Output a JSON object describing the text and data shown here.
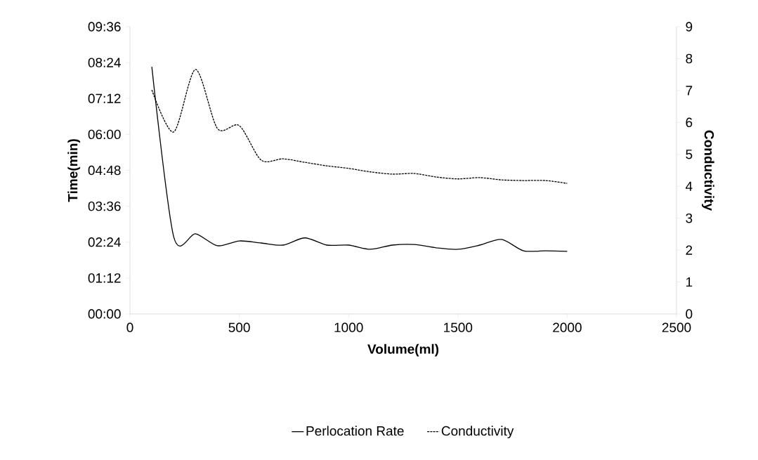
{
  "chart_data": {
    "type": "line",
    "xlabel": "Volume(ml)",
    "ylabel": "Time(min)",
    "y2label": "Conductivity",
    "legend": "bottom",
    "x": [
      100,
      200,
      300,
      400,
      500,
      600,
      700,
      800,
      900,
      1000,
      1100,
      1200,
      1300,
      1400,
      1500,
      1600,
      1700,
      1800,
      1900,
      2000
    ],
    "xlim": [
      0,
      2500
    ],
    "xticks": [
      0,
      500,
      1000,
      1500,
      2000,
      2500
    ],
    "ylim": [
      0,
      9.6
    ],
    "yticks": [
      {
        "value": 0,
        "label": "00:00"
      },
      {
        "value": 1.2,
        "label": "01:12"
      },
      {
        "value": 2.4,
        "label": "02:24"
      },
      {
        "value": 3.6,
        "label": "03:36"
      },
      {
        "value": 4.8,
        "label": "04:48"
      },
      {
        "value": 6.0,
        "label": "06:00"
      },
      {
        "value": 7.2,
        "label": "07:12"
      },
      {
        "value": 8.4,
        "label": "08:24"
      },
      {
        "value": 9.6,
        "label": "09:36"
      }
    ],
    "y2lim": [
      0,
      9
    ],
    "y2ticks": [
      0,
      1,
      2,
      3,
      4,
      5,
      6,
      7,
      8,
      9
    ],
    "series": [
      {
        "name": "Perlocation Rate",
        "color": "#000000",
        "line_style": "solid",
        "values": [
          8.26,
          2.58,
          2.68,
          2.28,
          2.44,
          2.37,
          2.3,
          2.54,
          2.3,
          2.3,
          2.16,
          2.3,
          2.32,
          2.21,
          2.16,
          2.3,
          2.49,
          2.11,
          2.11,
          2.09
        ]
      },
      {
        "name": "Conductivity",
        "color": "#000000",
        "line_style": "dashed",
        "axis": "y2",
        "values": [
          7.02,
          5.7,
          7.66,
          5.81,
          5.9,
          4.82,
          4.86,
          4.75,
          4.64,
          4.56,
          4.45,
          4.38,
          4.4,
          4.29,
          4.23,
          4.27,
          4.2,
          4.18,
          4.18,
          4.09
        ]
      }
    ]
  }
}
